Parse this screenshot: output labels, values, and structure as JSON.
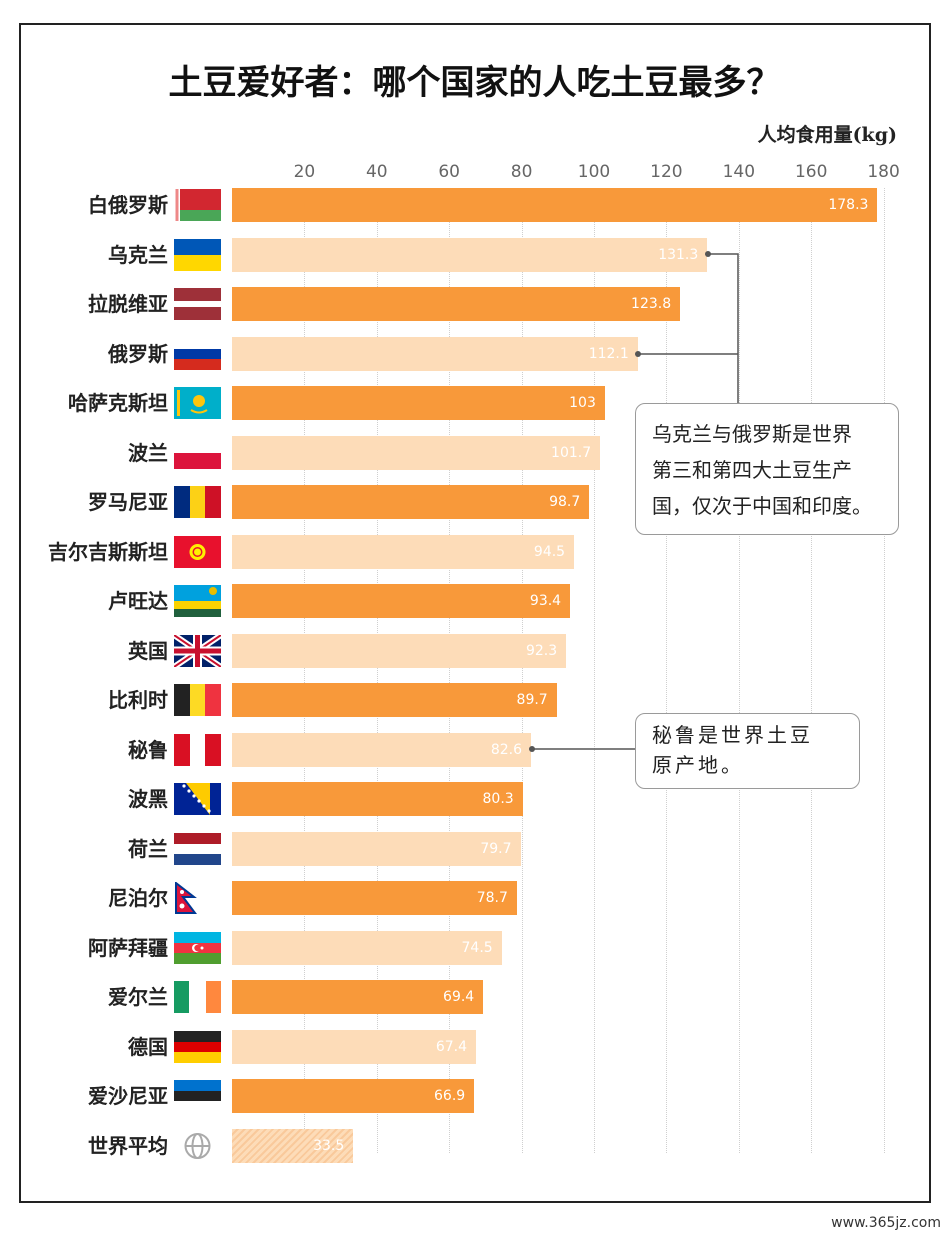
{
  "title": "土豆爱好者：哪个国家的人吃土豆最多？",
  "unit_label": "人均食用量(kg)",
  "annotations": {
    "ukraine_russia": [
      "乌克兰与俄罗斯是世界",
      "第三和第四大土豆生产",
      "国，仅次于中国和印度。"
    ],
    "peru": [
      "秘鲁是世界土豆",
      "原产地。"
    ]
  },
  "watermark": "www.365jz.com",
  "chart_data": {
    "type": "bar",
    "orientation": "horizontal",
    "xlim": [
      0,
      180
    ],
    "xticks": [
      20,
      40,
      60,
      80,
      100,
      120,
      140,
      160,
      180
    ],
    "categories": [
      "白俄罗斯",
      "乌克兰",
      "拉脱维亚",
      "俄罗斯",
      "哈萨克斯坦",
      "波兰",
      "罗马尼亚",
      "吉尔吉斯斯坦",
      "卢旺达",
      "英国",
      "比利时",
      "秘鲁",
      "波黑",
      "荷兰",
      "尼泊尔",
      "阿萨拜疆",
      "爱尔兰",
      "德国",
      "爱沙尼亚",
      "世界平均"
    ],
    "values": [
      178.3,
      131.3,
      123.8,
      112.1,
      103,
      101.7,
      98.7,
      94.5,
      93.4,
      92.3,
      89.7,
      82.6,
      80.3,
      79.7,
      78.7,
      74.5,
      69.4,
      67.4,
      66.9,
      33.5
    ],
    "value_labels": [
      "178.3",
      "131.3",
      "123.8",
      "112.1",
      "103",
      "101.7",
      "98.7",
      "94.5",
      "93.4",
      "92.3",
      "89.7",
      "82.6",
      "80.3",
      "79.7",
      "78.7",
      "74.5",
      "69.4",
      "67.4",
      "66.9",
      "33.5"
    ],
    "colors": {
      "dark": "#f8993a",
      "light": "#fddcb8"
    },
    "flags": [
      "belarus-flag",
      "ukraine-flag",
      "latvia-flag",
      "russia-flag",
      "kazakhstan-flag",
      "poland-flag",
      "romania-flag",
      "kyrgyzstan-flag",
      "rwanda-flag",
      "uk-flag",
      "belgium-flag",
      "peru-flag",
      "bosnia-flag",
      "netherlands-flag",
      "nepal-flag",
      "azerbaijan-flag",
      "ireland-flag",
      "germany-flag",
      "estonia-flag",
      "globe-icon"
    ],
    "grid": true
  }
}
